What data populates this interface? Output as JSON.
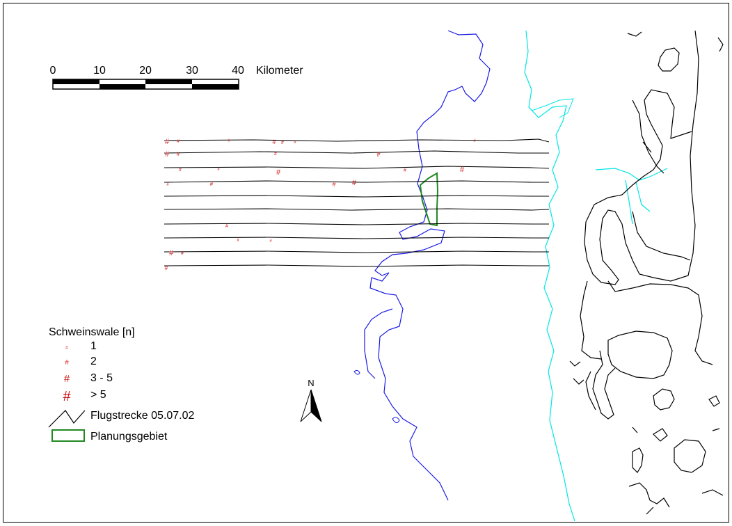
{
  "scale_bar": {
    "ticks": [
      "0",
      "10",
      "20",
      "30",
      "40"
    ],
    "unit": "Kilometer"
  },
  "north_arrow": {
    "label": "N"
  },
  "legend": {
    "title": "Schweinswale [n]",
    "items": [
      {
        "label": "1",
        "symbol": "#",
        "color": "#e05050"
      },
      {
        "label": "2",
        "symbol": "#",
        "color": "#e03030"
      },
      {
        "label": "3 - 5",
        "symbol": "#",
        "color": "#d02020"
      },
      {
        "label": "> 5",
        "symbol": "#",
        "color": "#cc1010"
      },
      {
        "label": "Flugstrecke 05.07.02",
        "symbol": "line",
        "color": "#000000"
      },
      {
        "label": "Planungsgebiet",
        "symbol": "polygon",
        "color": "#228822"
      }
    ]
  },
  "colors": {
    "depth_contour": "#1a1ae6",
    "coastline_cyan": "#00e5e5",
    "islands": "#000000",
    "planning_area": "#228822",
    "flight_track": "#000000"
  }
}
